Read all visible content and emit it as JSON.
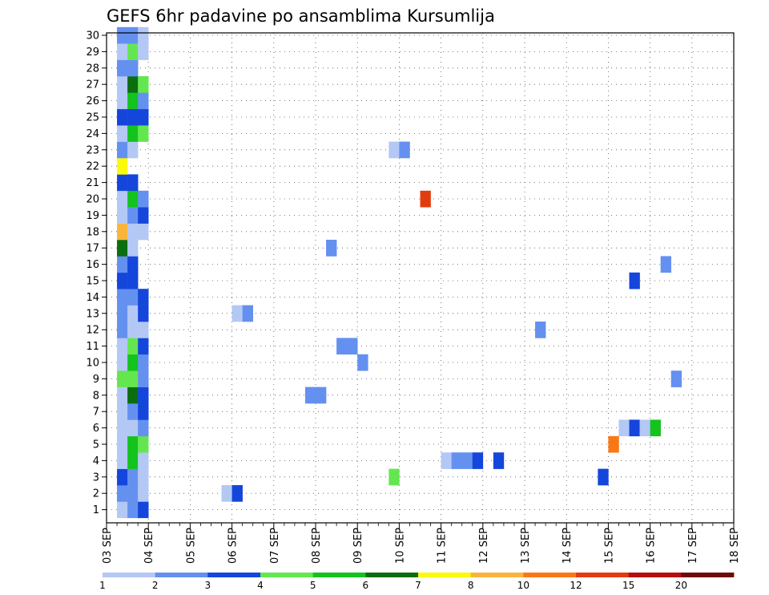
{
  "chart_data": {
    "type": "heatmap",
    "title": "GEFS 6hr padavine po ansamblima Kursumlija",
    "xlabel": "",
    "ylabel": "",
    "x_tick_labels": [
      "03 SEP",
      "04 SEP",
      "05 SEP",
      "06 SEP",
      "07 SEP",
      "08 SEP",
      "09 SEP",
      "10 SEP",
      "11 SEP",
      "12 SEP",
      "13 SEP",
      "14 SEP",
      "15 SEP",
      "16 SEP",
      "17 SEP",
      "18 SEP"
    ],
    "xlim_days": [
      3,
      18
    ],
    "x_step_hours": 6,
    "y_members": [
      1,
      2,
      3,
      4,
      5,
      6,
      7,
      8,
      9,
      10,
      11,
      12,
      13,
      14,
      15,
      16,
      17,
      18,
      19,
      20,
      21,
      22,
      23,
      24,
      25,
      26,
      27,
      28,
      29,
      30
    ],
    "grid": true,
    "colorbar": {
      "tick_labels": [
        "1",
        "2",
        "3",
        "4",
        "5",
        "6",
        "7",
        "8",
        "10",
        "12",
        "15",
        "20"
      ],
      "colors": [
        "#b4c8f5",
        "#6490f0",
        "#1446dc",
        "#64e650",
        "#14c31e",
        "#0a6e0f",
        "#fafa0a",
        "#fab43c",
        "#fa7814",
        "#e13c0f",
        "#b40f0f",
        "#6e0a0a"
      ]
    },
    "cells": [
      [
        1,
        1,
        1
      ],
      [
        2,
        1,
        2
      ],
      [
        3,
        1,
        3
      ],
      [
        1,
        2,
        2
      ],
      [
        2,
        2,
        2
      ],
      [
        3,
        2,
        1
      ],
      [
        1,
        3,
        3
      ],
      [
        2,
        3,
        2
      ],
      [
        3,
        3,
        1
      ],
      [
        1,
        4,
        1
      ],
      [
        2,
        4,
        5
      ],
      [
        3,
        4,
        1
      ],
      [
        1,
        5,
        1
      ],
      [
        2,
        5,
        5
      ],
      [
        3,
        5,
        4
      ],
      [
        1,
        6,
        1
      ],
      [
        2,
        6,
        1
      ],
      [
        3,
        6,
        2
      ],
      [
        1,
        7,
        1
      ],
      [
        2,
        7,
        2
      ],
      [
        3,
        7,
        3
      ],
      [
        1,
        8,
        1
      ],
      [
        2,
        8,
        6
      ],
      [
        3,
        8,
        3
      ],
      [
        1,
        9,
        4
      ],
      [
        2,
        9,
        4
      ],
      [
        3,
        9,
        2
      ],
      [
        1,
        10,
        1
      ],
      [
        2,
        10,
        5
      ],
      [
        3,
        10,
        2
      ],
      [
        1,
        11,
        1
      ],
      [
        2,
        11,
        4
      ],
      [
        3,
        11,
        3
      ],
      [
        1,
        12,
        2
      ],
      [
        2,
        12,
        1
      ],
      [
        3,
        12,
        1
      ],
      [
        1,
        13,
        2
      ],
      [
        2,
        13,
        1
      ],
      [
        3,
        13,
        3
      ],
      [
        1,
        14,
        2
      ],
      [
        2,
        14,
        2
      ],
      [
        3,
        14,
        3
      ],
      [
        1,
        15,
        3
      ],
      [
        2,
        15,
        3
      ],
      [
        1,
        16,
        2
      ],
      [
        2,
        16,
        3
      ],
      [
        1,
        17,
        6
      ],
      [
        2,
        17,
        1
      ],
      [
        1,
        18,
        8
      ],
      [
        2,
        18,
        1
      ],
      [
        3,
        18,
        1
      ],
      [
        1,
        19,
        1
      ],
      [
        2,
        19,
        2
      ],
      [
        3,
        19,
        3
      ],
      [
        1,
        20,
        1
      ],
      [
        2,
        20,
        5
      ],
      [
        3,
        20,
        2
      ],
      [
        1,
        21,
        3
      ],
      [
        2,
        21,
        3
      ],
      [
        1,
        22,
        7
      ],
      [
        1,
        23,
        2
      ],
      [
        2,
        23,
        1
      ],
      [
        1,
        24,
        1
      ],
      [
        2,
        24,
        5
      ],
      [
        3,
        24,
        4
      ],
      [
        1,
        25,
        3
      ],
      [
        2,
        25,
        3
      ],
      [
        3,
        25,
        3
      ],
      [
        1,
        26,
        1
      ],
      [
        2,
        26,
        5
      ],
      [
        3,
        26,
        2
      ],
      [
        1,
        27,
        1
      ],
      [
        2,
        27,
        6
      ],
      [
        3,
        27,
        4
      ],
      [
        1,
        28,
        2
      ],
      [
        2,
        28,
        2
      ],
      [
        1,
        29,
        1
      ],
      [
        2,
        29,
        4
      ],
      [
        3,
        29,
        1
      ],
      [
        1,
        30,
        2
      ],
      [
        2,
        30,
        2
      ],
      [
        3,
        30,
        1
      ],
      [
        11,
        2,
        1
      ],
      [
        12,
        2,
        3
      ],
      [
        12,
        13,
        1
      ],
      [
        13,
        13,
        2
      ],
      [
        19,
        8,
        2
      ],
      [
        20,
        8,
        2
      ],
      [
        21,
        17,
        2
      ],
      [
        22,
        11,
        2
      ],
      [
        23,
        11,
        2
      ],
      [
        24,
        10,
        2
      ],
      [
        27,
        3,
        4
      ],
      [
        27,
        23,
        1
      ],
      [
        28,
        23,
        2
      ],
      [
        30,
        20,
        10
      ],
      [
        32,
        4,
        1
      ],
      [
        33,
        4,
        2
      ],
      [
        34,
        4,
        2
      ],
      [
        35,
        4,
        3
      ],
      [
        37,
        4,
        3
      ],
      [
        41,
        12,
        2
      ],
      [
        47,
        3,
        3
      ],
      [
        48,
        5,
        9
      ],
      [
        49,
        6,
        1
      ],
      [
        50,
        6,
        3
      ],
      [
        51,
        6,
        1
      ],
      [
        50,
        15,
        3
      ],
      [
        52,
        6,
        5
      ],
      [
        53,
        16,
        2
      ],
      [
        54,
        9,
        2
      ]
    ]
  }
}
